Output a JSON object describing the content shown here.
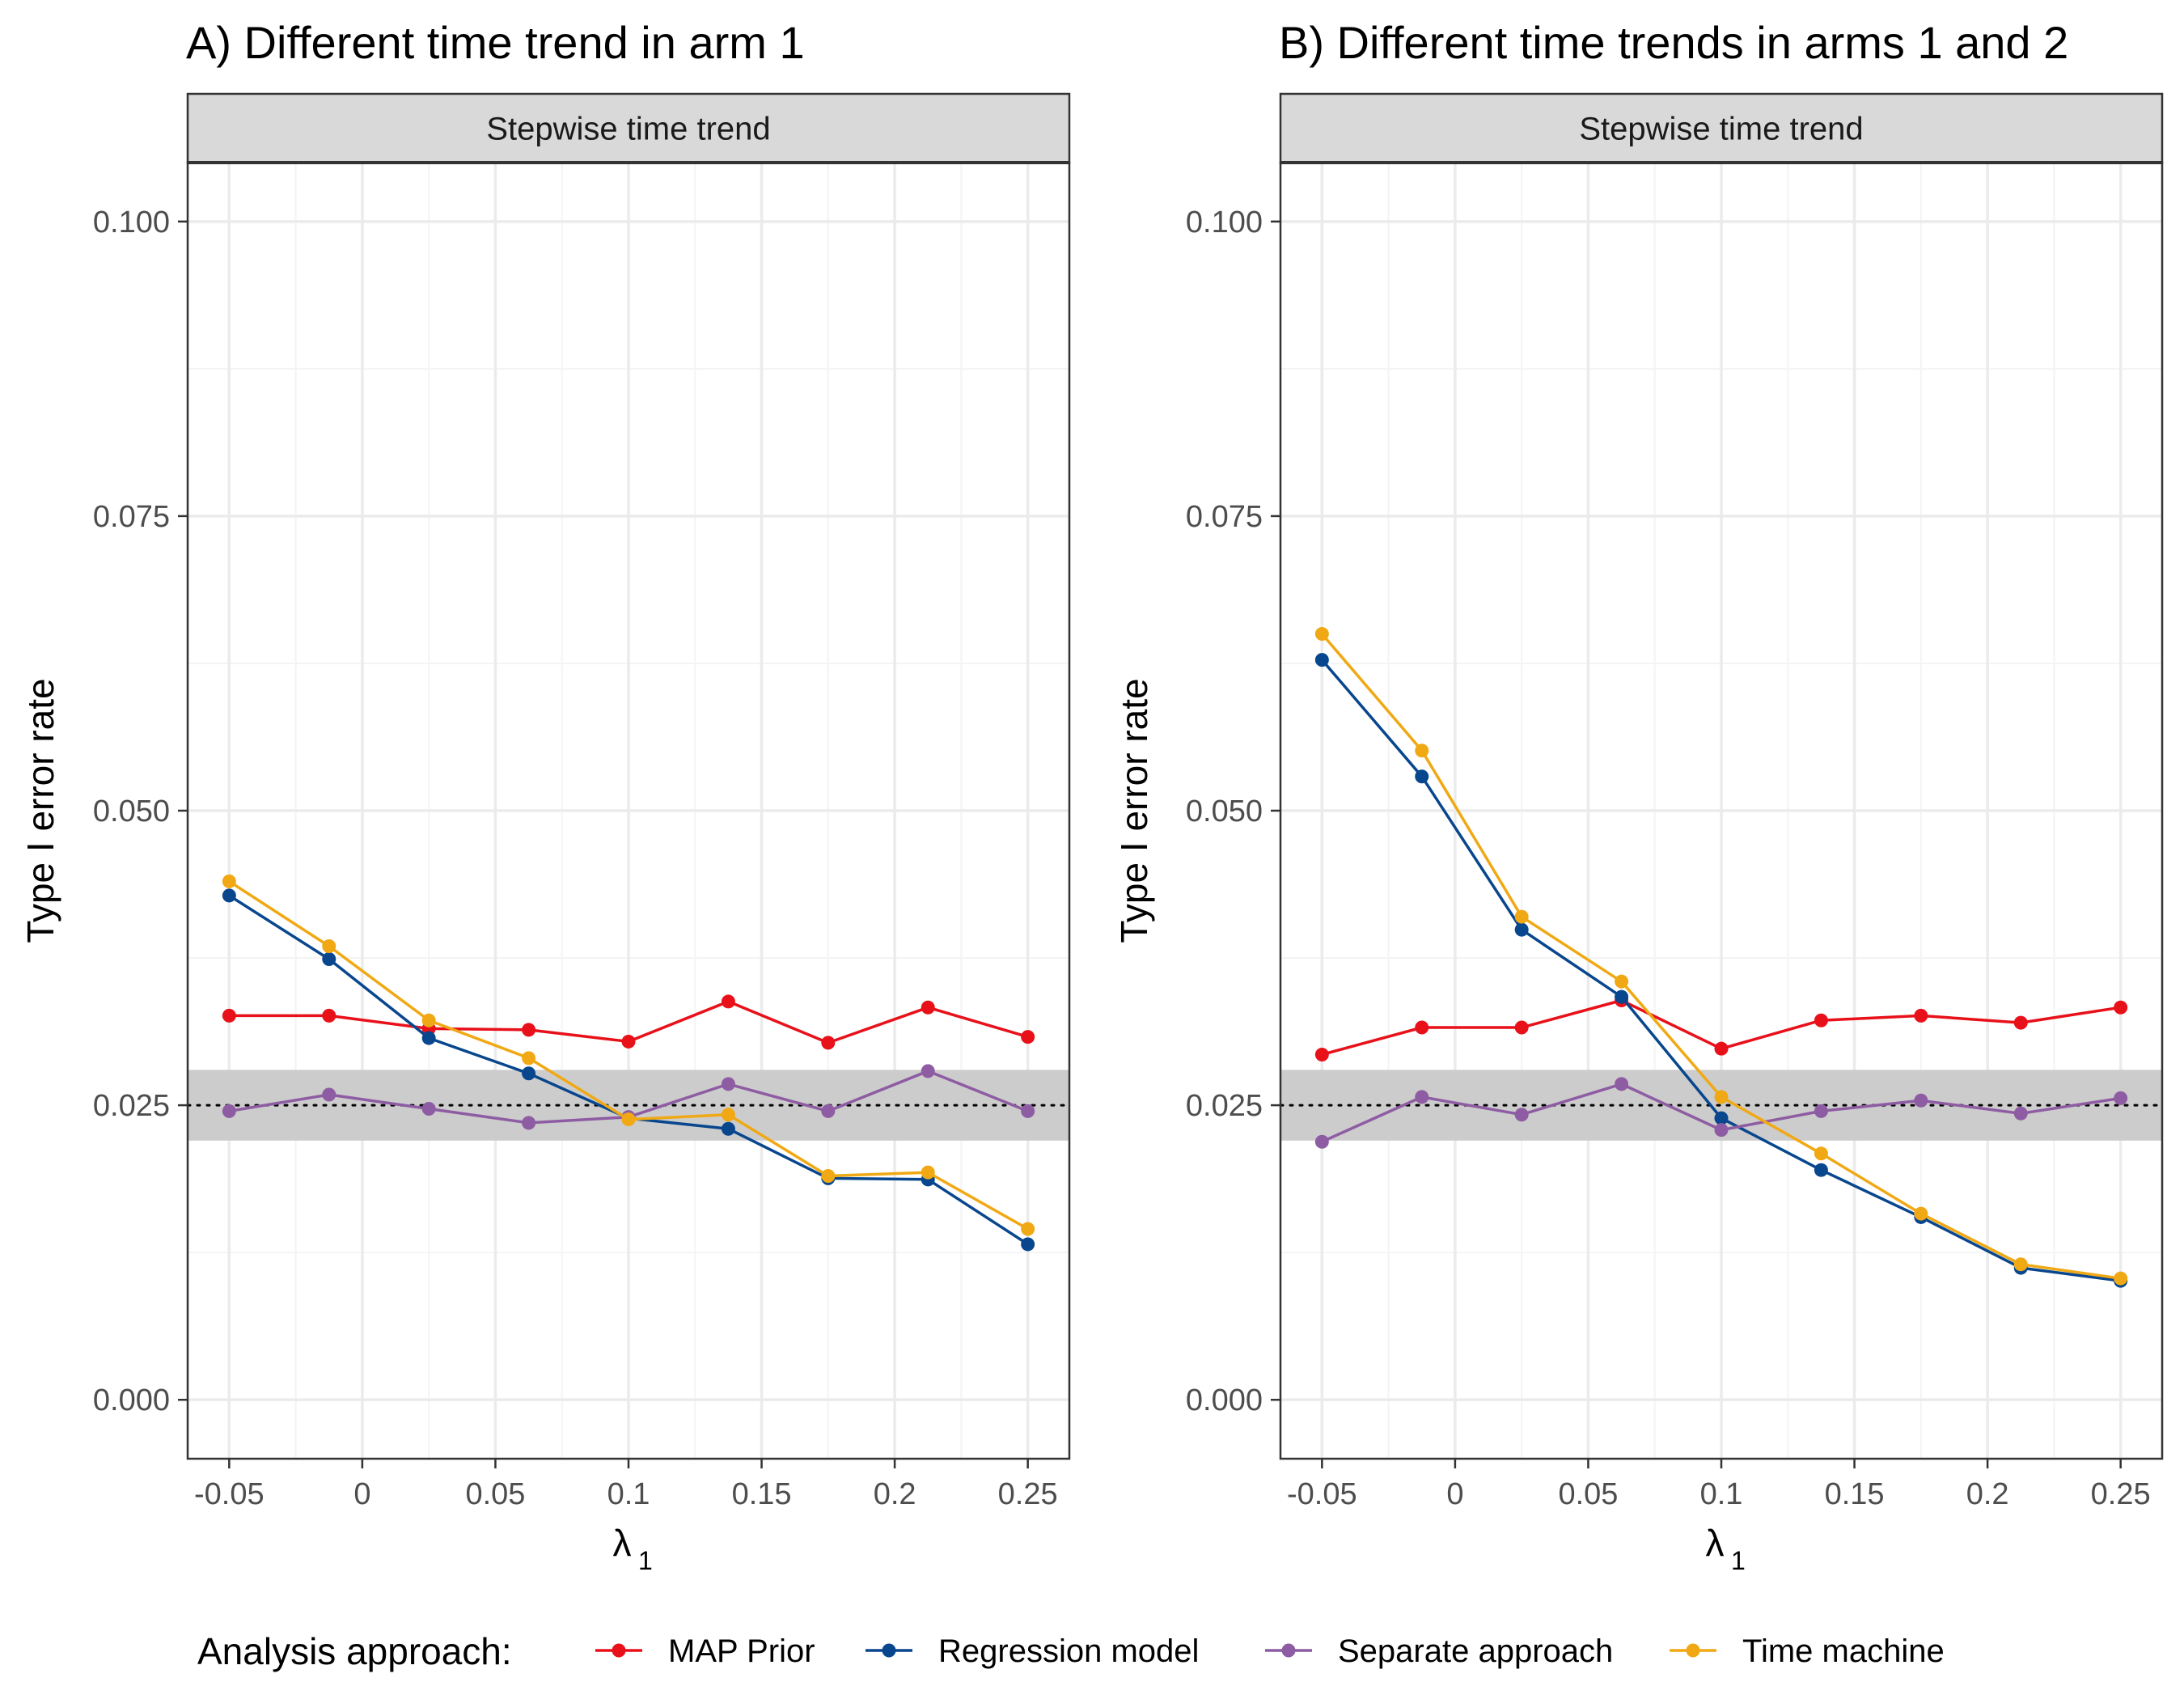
{
  "chart_data": [
    {
      "type": "line",
      "title": "A) Different time trend in arm 1",
      "facet": "Stepwise time trend",
      "xlabel": "λ",
      "xlabel_subscript": "1",
      "ylabel": "Type I error rate",
      "xlim": [
        -0.0656,
        0.2656
      ],
      "ylim": [
        -0.005,
        0.105
      ],
      "x_ticks": [
        -0.05,
        0,
        0.05,
        0.1,
        0.15,
        0.2,
        0.25
      ],
      "x_tick_labels": [
        "-0.05",
        "0",
        "0.05",
        "0.1",
        "0.15",
        "0.2",
        "0.25"
      ],
      "y_ticks": [
        0,
        0.025,
        0.05,
        0.075,
        0.1
      ],
      "y_tick_labels": [
        "0.000",
        "0.025",
        "0.050",
        "0.075",
        "0.100"
      ],
      "reference_line": 0.025,
      "reference_band": [
        0.022,
        0.028
      ],
      "grid": true,
      "x": [
        -0.05,
        -0.0125,
        0.025,
        0.0625,
        0.1,
        0.1375,
        0.175,
        0.2125,
        0.25
      ],
      "series": [
        {
          "name": "MAP Prior",
          "values": [
            0.0326,
            0.0326,
            0.0315,
            0.0314,
            0.0304,
            0.0338,
            0.0303,
            0.0333,
            0.0308
          ]
        },
        {
          "name": "Regression model",
          "values": [
            0.0428,
            0.0374,
            0.0307,
            0.0277,
            0.0239,
            0.023,
            0.0188,
            0.0187,
            0.0132
          ]
        },
        {
          "name": "Separate approach",
          "values": [
            0.0245,
            0.0259,
            0.0247,
            0.0235,
            0.024,
            0.0268,
            0.0245,
            0.0279,
            0.0245
          ]
        },
        {
          "name": "Time machine",
          "values": [
            0.044,
            0.0385,
            0.0322,
            0.029,
            0.0238,
            0.0242,
            0.019,
            0.0193,
            0.0145
          ]
        }
      ]
    },
    {
      "type": "line",
      "title": "B) Different time trends in arms 1 and 2",
      "facet": "Stepwise time trend",
      "xlabel": "λ",
      "xlabel_subscript": "1",
      "ylabel": "Type I error rate",
      "xlim": [
        -0.0656,
        0.2656
      ],
      "ylim": [
        -0.005,
        0.105
      ],
      "x_ticks": [
        -0.05,
        0,
        0.05,
        0.1,
        0.15,
        0.2,
        0.25
      ],
      "x_tick_labels": [
        "-0.05",
        "0",
        "0.05",
        "0.1",
        "0.15",
        "0.2",
        "0.25"
      ],
      "y_ticks": [
        0,
        0.025,
        0.05,
        0.075,
        0.1
      ],
      "y_tick_labels": [
        "0.000",
        "0.025",
        "0.050",
        "0.075",
        "0.100"
      ],
      "reference_line": 0.025,
      "reference_band": [
        0.022,
        0.028
      ],
      "grid": true,
      "x": [
        -0.05,
        -0.0125,
        0.025,
        0.0625,
        0.1,
        0.1375,
        0.175,
        0.2125,
        0.25
      ],
      "series": [
        {
          "name": "MAP Prior",
          "values": [
            0.0293,
            0.0316,
            0.0316,
            0.0339,
            0.0298,
            0.0322,
            0.0326,
            0.032,
            0.0333
          ]
        },
        {
          "name": "Regression model",
          "values": [
            0.0628,
            0.0529,
            0.0399,
            0.0342,
            0.0239,
            0.0195,
            0.0155,
            0.0112,
            0.0101
          ]
        },
        {
          "name": "Separate approach",
          "values": [
            0.0219,
            0.0257,
            0.0242,
            0.0268,
            0.0229,
            0.0245,
            0.0254,
            0.0243,
            0.0256
          ]
        },
        {
          "name": "Time machine",
          "values": [
            0.065,
            0.0551,
            0.041,
            0.0355,
            0.0257,
            0.0209,
            0.0158,
            0.0115,
            0.0103
          ]
        }
      ]
    }
  ],
  "legend": {
    "title": "Analysis approach:",
    "position": "bottom",
    "items": [
      {
        "label": "MAP Prior",
        "color": "#E8111A"
      },
      {
        "label": "Regression model",
        "color": "#08468E"
      },
      {
        "label": "Separate approach",
        "color": "#8E5CA3"
      },
      {
        "label": "Time machine",
        "color": "#F0A914"
      }
    ]
  },
  "colors": {
    "reference_band": "#cccccc",
    "strip_background": "#d9d9d9",
    "grid_major": "#ebebeb",
    "grid_minor": "#f4f4f4",
    "panel_border": "#333333"
  }
}
